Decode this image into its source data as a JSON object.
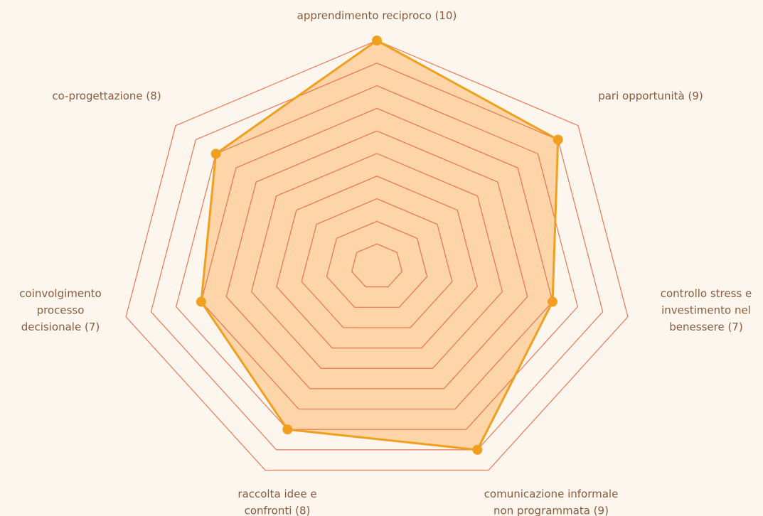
{
  "chart_data": {
    "type": "radar",
    "categories": [
      [
        "apprendimento reciproco (10)"
      ],
      [
        "pari opportunità (9)"
      ],
      [
        "controllo stress e",
        "investimento nel",
        "benessere (7)"
      ],
      [
        "comunicazione informale",
        "non programmata (9)"
      ],
      [
        "raccolta idee e",
        "confronti (8)"
      ],
      [
        "coinvolgimento",
        "processo",
        "decisionale (7)"
      ],
      [
        "co-progettazione (8)"
      ]
    ],
    "values": [
      10,
      9,
      7,
      9,
      8,
      7,
      8
    ],
    "rlim": [
      0,
      10
    ],
    "rticks": [
      1,
      2,
      3,
      4,
      5,
      6,
      7,
      8,
      9,
      10
    ],
    "color": "#f0a01e",
    "fill_color": "#fdd5a8",
    "grid_color": "#e8623a"
  }
}
